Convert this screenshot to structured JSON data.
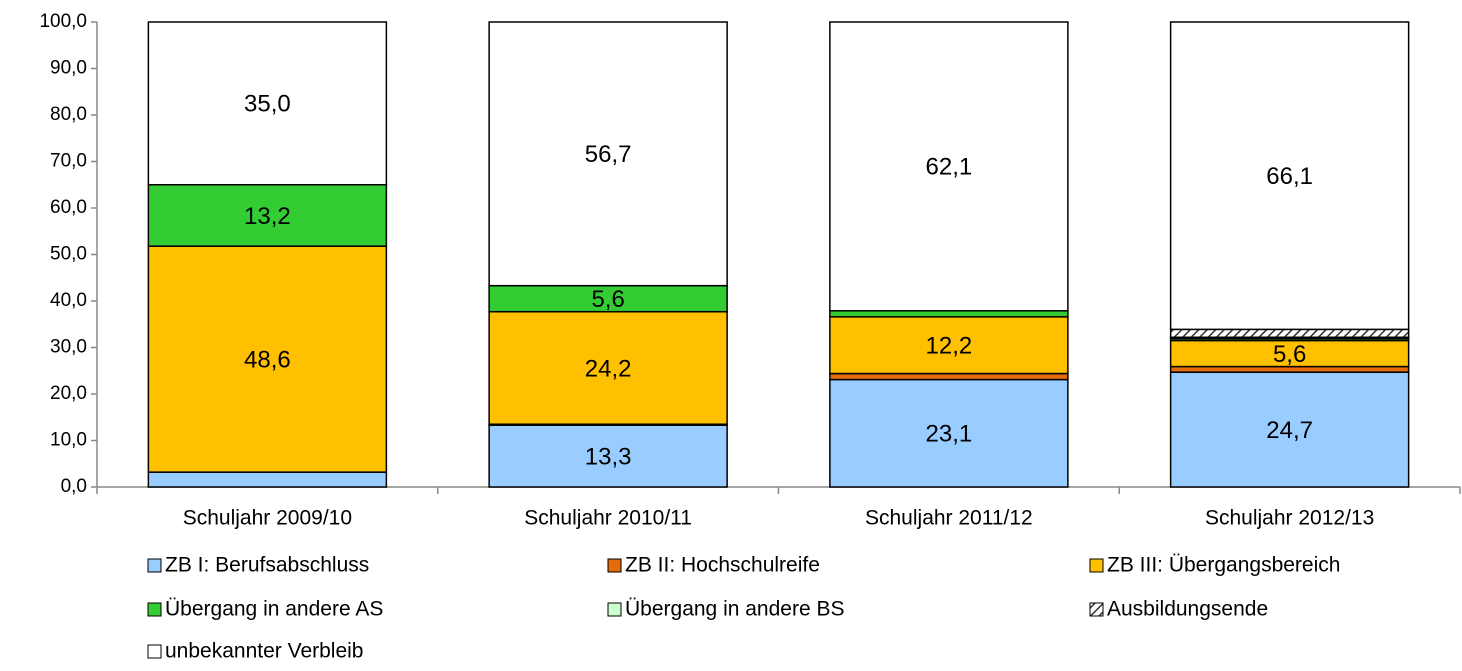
{
  "chart_data": {
    "type": "stacked_bar",
    "categories": [
      "Schuljahr 2009/10",
      "Schuljahr 2010/11",
      "Schuljahr 2011/12",
      "Schuljahr 2012/13"
    ],
    "series": [
      {
        "name": "ZB I: Berufsabschluss",
        "color": "#99ccff",
        "values": [
          3.2,
          13.3,
          23.1,
          24.7
        ],
        "value_labels": [
          null,
          "13,3",
          "23,1",
          "24,7"
        ]
      },
      {
        "name": "ZB II: Hochschulreife",
        "color": "#e46c0a",
        "values": [
          0,
          0.2,
          1.3,
          1.2
        ],
        "value_labels": [
          null,
          null,
          null,
          null
        ]
      },
      {
        "name": "ZB III: Übergangsbereich",
        "color": "#ffc000",
        "values": [
          48.6,
          24.2,
          12.2,
          5.6
        ],
        "value_labels": [
          "48,6",
          "24,2",
          "12,2",
          "5,6"
        ]
      },
      {
        "name": "Übergang in andere AS",
        "color": "#33cc33",
        "values": [
          13.2,
          5.6,
          1.3,
          0.4
        ],
        "value_labels": [
          "13,2",
          "5,6",
          null,
          null
        ]
      },
      {
        "name": "Übergang in andere BS",
        "color": "#ccffcc",
        "values": [
          0,
          0,
          0,
          0.3
        ],
        "value_labels": [
          null,
          null,
          null,
          null
        ]
      },
      {
        "name": "Ausbildungsende",
        "color": "hatch",
        "values": [
          0,
          0,
          0,
          1.7
        ],
        "value_labels": [
          null,
          null,
          null,
          null
        ]
      },
      {
        "name": "unbekannter Verbleib",
        "color": "#ffffff",
        "values": [
          35.0,
          56.7,
          62.1,
          66.1
        ],
        "value_labels": [
          "35,0",
          "56,7",
          "62,1",
          "66,1"
        ]
      }
    ],
    "ylim": [
      0,
      100
    ],
    "yticks": [
      {
        "value": 0,
        "label": "0,0"
      },
      {
        "value": 10,
        "label": "10,0"
      },
      {
        "value": 20,
        "label": "20,0"
      },
      {
        "value": 30,
        "label": "30,0"
      },
      {
        "value": 40,
        "label": "40,0"
      },
      {
        "value": 50,
        "label": "50,0"
      },
      {
        "value": 60,
        "label": "60,0"
      },
      {
        "value": 70,
        "label": "70,0"
      },
      {
        "value": 80,
        "label": "80,0"
      },
      {
        "value": 90,
        "label": "90,0"
      },
      {
        "value": 100,
        "label": "100,0"
      }
    ],
    "legend": "bottom"
  }
}
